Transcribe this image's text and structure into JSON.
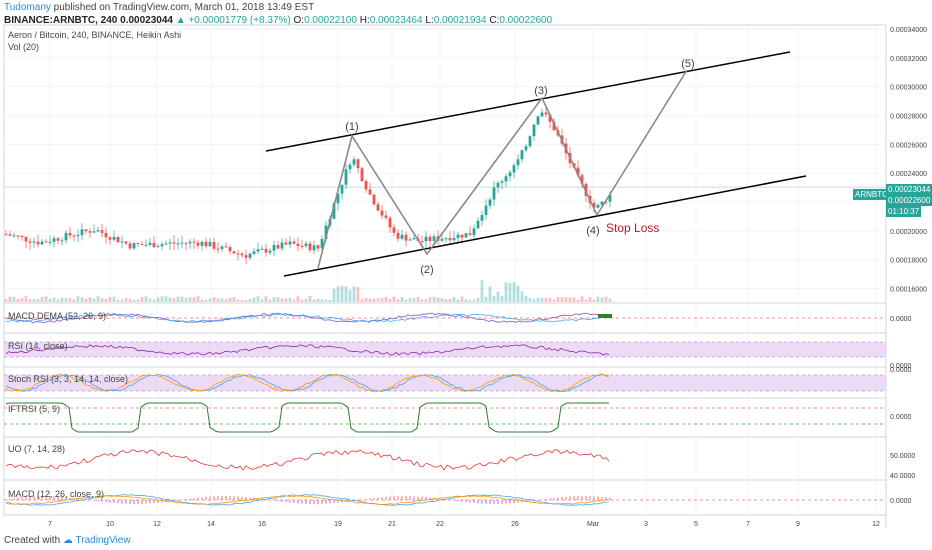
{
  "header": {
    "author": "Tudomany",
    "published": "published on TradingView.com, March 01, 2018 13:49 EST",
    "symbol": "BINANCE:ARNBTC, 240",
    "last": "0.00023044",
    "change": "▲ +0.00001779 (+8.37%)",
    "o_label": "O:",
    "o": "0.00022100",
    "h_label": "H:",
    "h": "0.00023464",
    "l_label": "L:",
    "l": "0.00021934",
    "c_label": "C:",
    "c": "0.00022600"
  },
  "main": {
    "title": "Aeron / Bitcoin, 240, BINANCE, Heikin Ashi",
    "vol_label": "Vol (20)",
    "wave_labels": [
      "(1)",
      "(2)",
      "(3)",
      "(4)",
      "(5)"
    ],
    "stop_loss": "Stop Loss",
    "price_ticks": [
      "0.00034000",
      "0.00032000",
      "0.00030000",
      "0.00028000",
      "0.00026000",
      "0.00024000",
      "0.00022000",
      "0.00020000",
      "0.00018000",
      "0.00016000"
    ],
    "badge_symbol": "ARNBTC",
    "badge_price1": "0.00023044",
    "badge_price2": "0.00022600",
    "badge_timer": "01:10:37"
  },
  "indicators": {
    "macd_dema": "MACD DEMA (52, 26, 9)",
    "rsi": "RSI (14, close)",
    "stoch": "Stoch RSI (3, 3, 14, 14, close)",
    "iftrsi": "IFTRSI (5, 9)",
    "uo": "UO (7, 14, 28)",
    "macd": "MACD (12, 26, close, 9)",
    "macd_dema_tick": "0.0000",
    "rsi_tick": "0.0000",
    "stoch_tick": "0.0000",
    "iftrsi_tick": "0.0000",
    "uo_ticks": [
      "50.0000",
      "40.0000"
    ],
    "macd_tick": "0.0000"
  },
  "x_axis": {
    "labels": [
      "7",
      "10",
      "12",
      "14",
      "16",
      "19",
      "21",
      "22",
      "26",
      "Mar",
      "3",
      "5",
      "7",
      "9",
      "12"
    ]
  },
  "footer": {
    "created": "Created with",
    "brand": "TradingView"
  },
  "colors": {
    "up": "#26a69a",
    "down": "#ef5350",
    "wave_line": "#8a8a8a",
    "trend_line": "#000000",
    "stop_loss": "#b71c1c",
    "rsi_band": "#e6ccf2",
    "link": "#2a8bd8"
  },
  "chart_data": {
    "type": "candlestick",
    "title": "Aeron / Bitcoin, 240, BINANCE, Heikin Ashi",
    "xlabel": "",
    "ylabel": "",
    "ylim": [
      0.00015,
      0.00034
    ],
    "elliott_waves": [
      {
        "label": "(1)",
        "price": 0.000267
      },
      {
        "label": "(2)",
        "price": 0.000185
      },
      {
        "label": "(3)",
        "price": 0.000292
      },
      {
        "label": "(4)",
        "price": 0.000212
      },
      {
        "label": "(5)",
        "price": 0.00031
      }
    ],
    "annotation": "Stop Loss"
  }
}
